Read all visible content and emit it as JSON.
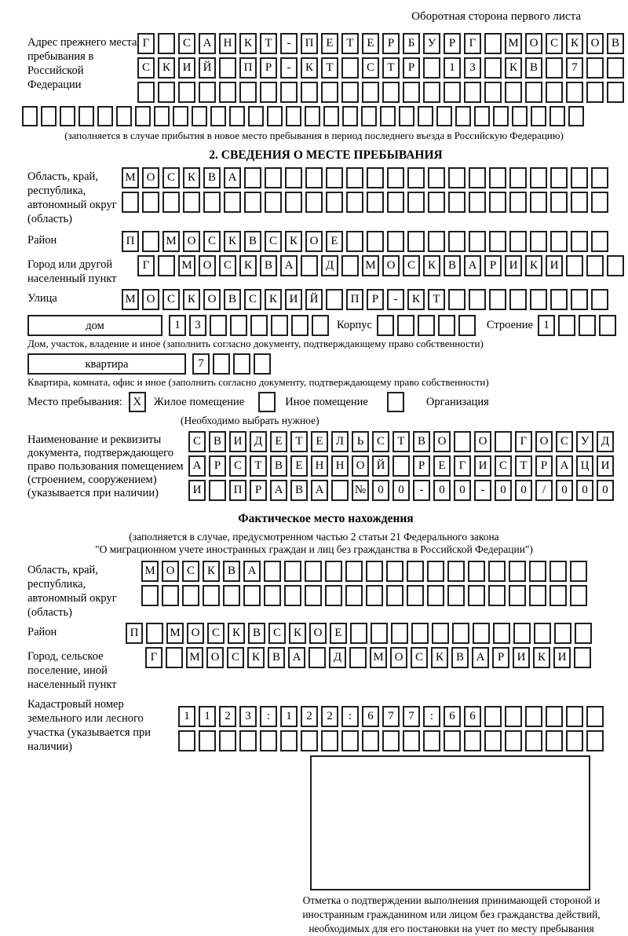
{
  "page": {
    "header": "Оборотная сторона первого листа"
  },
  "colors": {
    "ink": "#000000",
    "box_border": "#1f1f1f",
    "background": "#ffffff"
  },
  "prev_address": {
    "label": "Адрес прежнего места пребывания в Российской Федерации",
    "rows": [
      {
        "len": 24,
        "text": "Г САНКТ-ПЕТЕРБУРГ МОСКОВ"
      },
      {
        "len": 24,
        "text": "СКИЙ ПР-КТ СТР 13 КВ 7"
      },
      {
        "len": 24,
        "text": ""
      }
    ],
    "full_row": {
      "len": 30,
      "text": ""
    },
    "note": "(заполняется в случае прибытия в новое место пребывания в период последнего въезда в Российскую Федерацию)"
  },
  "section2": {
    "title": "2. СВЕДЕНИЯ О МЕСТЕ ПРЕБЫВАНИЯ",
    "oblast": {
      "label": "Область, край, республика, автономный округ (область)",
      "rows": [
        {
          "len": 24,
          "text": "МОСКВА"
        },
        {
          "len": 24,
          "text": ""
        }
      ]
    },
    "raion": {
      "label": "Район",
      "row": {
        "len": 24,
        "text": "П МОСКВСКОЕ"
      }
    },
    "gorod": {
      "label": "Город или другой населенный пункт",
      "row": {
        "len": 24,
        "text": "Г МОСКВА Д МОСКВАРИКИ"
      }
    },
    "ulitsa": {
      "label": "Улица",
      "row": {
        "len": 24,
        "text": "МОСКОВСКИЙ ПР-КТ"
      }
    },
    "house": {
      "field_label": "дом",
      "boxes": {
        "len": 8,
        "text": "13"
      },
      "korpus_label": "Корпус",
      "korpus_boxes": {
        "len": 5,
        "text": ""
      },
      "stroenie_label": "Строение",
      "stroenie_boxes": {
        "len": 4,
        "text": "1"
      },
      "note": "Дом, участок, владение и иное (заполнить согласно документу, подтверждающему право собственности)"
    },
    "apartment": {
      "field_label": "квартира",
      "boxes": {
        "len": 4,
        "text": "7"
      },
      "note": "Квартира, комната, офис и иное (заполнить согласно документу, подтверждающему право собственности)"
    },
    "place_type": {
      "label": "Место пребывания:",
      "options": [
        {
          "label": "Жилое помещение",
          "mark": "X"
        },
        {
          "label": "Иное помещение",
          "mark": ""
        },
        {
          "label": "Организация",
          "mark": ""
        }
      ],
      "note": "(Необходимо выбрать нужное)"
    },
    "doc": {
      "label": "Наименование и реквизиты документа, подтверждающего право пользования помещением (строением, сооружением) (указывается при наличии)",
      "rows": [
        {
          "len": 21,
          "text": "СВИДЕТЕЛЬСТВО О ГОСУД"
        },
        {
          "len": 21,
          "text": "АРСТВЕННОЙ РЕГИСТРАЦИ"
        },
        {
          "len": 21,
          "text": "И ПРАВА №00-00-00/000"
        }
      ]
    }
  },
  "section3": {
    "title": "Фактическое место нахождения",
    "note_line1": "(заполняется в случае, предусмотренном частью 2 статьи 21 Федерального закона",
    "note_line2": "\"О миграционном учете иностранных граждан и лиц без гражданства в Российской Федерации\")",
    "oblast": {
      "label": "Область, край, республика, автономный округ (область)",
      "rows": [
        {
          "len": 22,
          "text": "МОСКВА"
        },
        {
          "len": 22,
          "text": ""
        }
      ]
    },
    "raion": {
      "label": "Район",
      "row": {
        "len": 23,
        "text": "П МОСКВСКОЕ"
      }
    },
    "gorod": {
      "label": "Город, сельское поселение, иной населенный пункт",
      "row": {
        "len": 22,
        "text": "Г МОСКВА Д МОСКВАРИКИ"
      }
    },
    "kadastr": {
      "label": "Кадастровый номер земельного или лесного участка (указывается при наличии)",
      "rows": [
        {
          "len": 21,
          "text": "1123:122:677:66"
        },
        {
          "len": 21,
          "text": ""
        }
      ]
    },
    "mark_caption": "Отметка о подтверждении выполнения принимающей стороной и иностранным гражданином или лицом без гражданства действий, необходимых для его постановки на учет по месту пребывания"
  }
}
